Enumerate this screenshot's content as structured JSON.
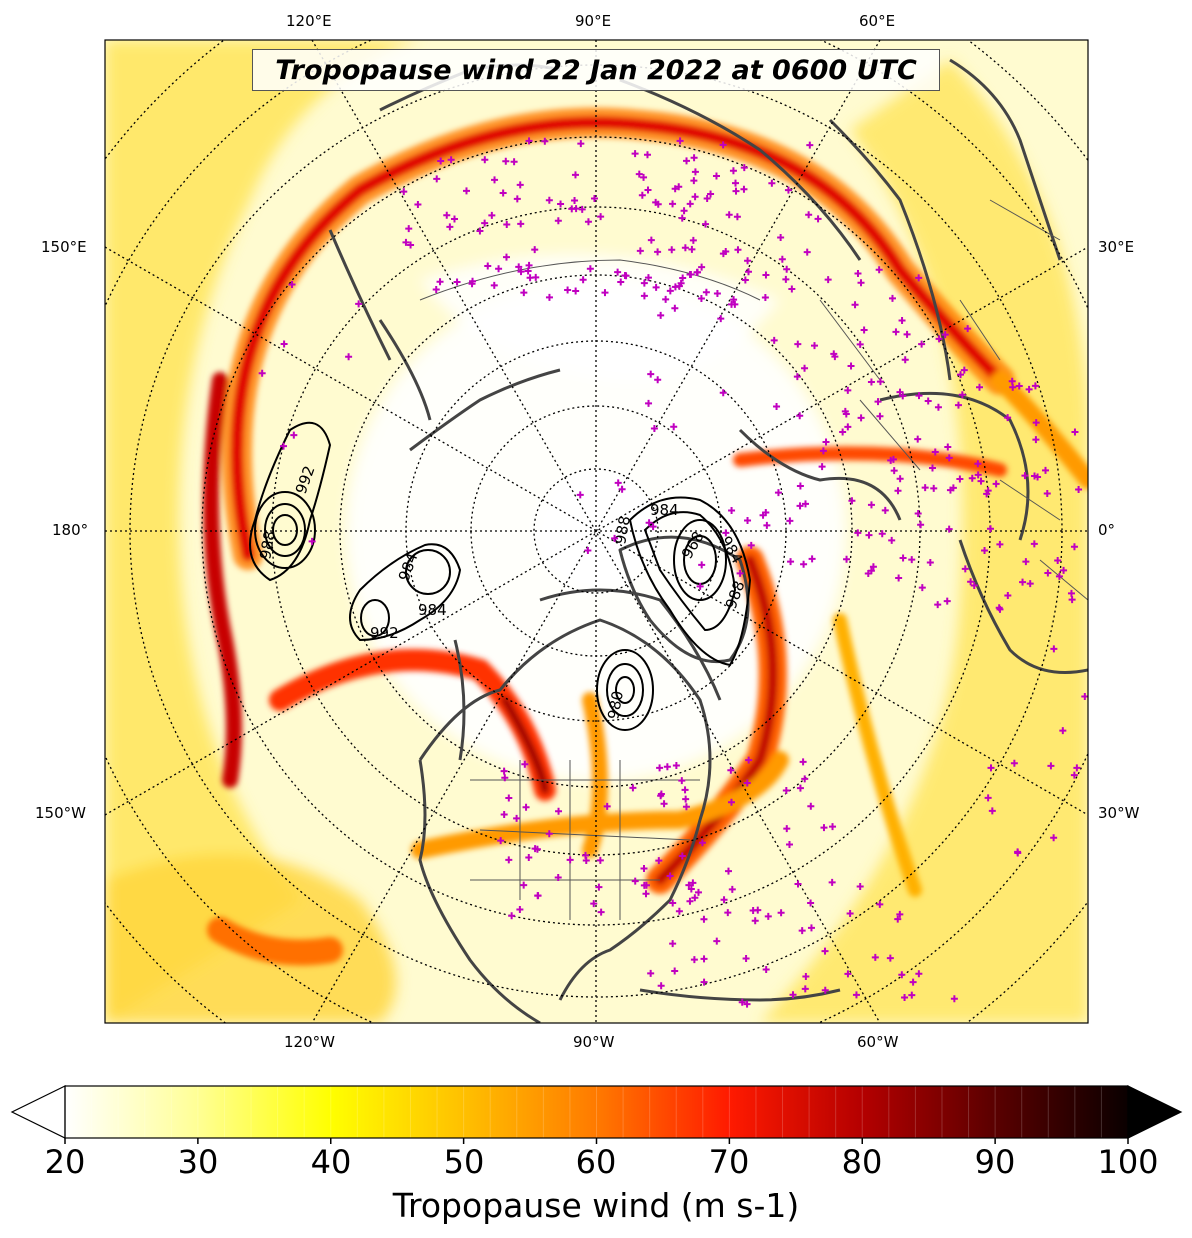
{
  "title": "Tropopause wind 22 Jan 2022 at 0600 UTC",
  "longitude_labels": {
    "top": [
      "120°E",
      "90°E",
      "60°E"
    ],
    "bottom": [
      "120°W",
      "90°W",
      "60°W"
    ],
    "left": [
      "150°E",
      "180°",
      "150°W"
    ],
    "right": [
      "30°E",
      "0°",
      "30°W"
    ]
  },
  "colorbar": {
    "label": "Tropopause wind (m s-1)",
    "ticks": [
      "20",
      "30",
      "40",
      "50",
      "60",
      "70",
      "80",
      "90",
      "100"
    ],
    "min": 20,
    "max": 100,
    "extend": "both",
    "colormap": "hot_r"
  },
  "contours": {
    "color": "#000000",
    "labels": [
      "992",
      "992",
      "984",
      "984",
      "988",
      "992",
      "984",
      "968",
      "984",
      "988",
      "988",
      "980"
    ]
  },
  "station_marker_color": "#c000c0",
  "coastline_color": "#444444"
}
